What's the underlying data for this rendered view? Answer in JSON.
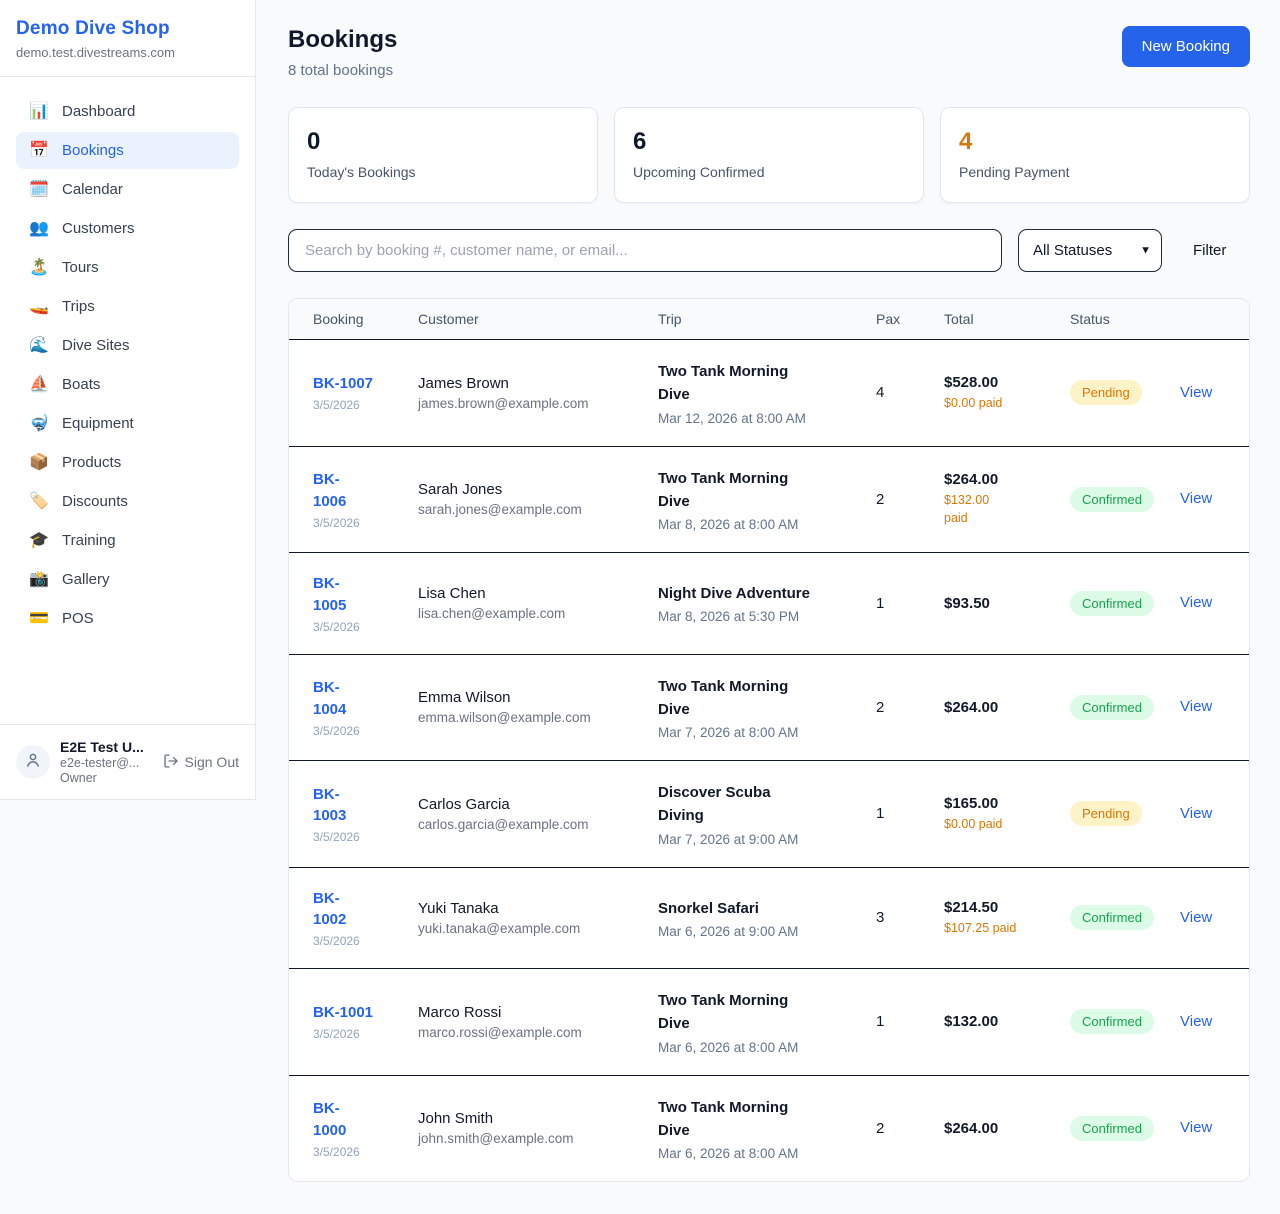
{
  "sidebar": {
    "shop_name": "Demo Dive Shop",
    "domain": "demo.test.divestreams.com",
    "items": [
      {
        "icon": "📊",
        "label": "Dashboard",
        "active": false
      },
      {
        "icon": "📅",
        "label": "Bookings",
        "active": true
      },
      {
        "icon": "🗓️",
        "label": "Calendar",
        "active": false
      },
      {
        "icon": "👥",
        "label": "Customers",
        "active": false
      },
      {
        "icon": "🏝️",
        "label": "Tours",
        "active": false
      },
      {
        "icon": "🚤",
        "label": "Trips",
        "active": false
      },
      {
        "icon": "🌊",
        "label": "Dive Sites",
        "active": false
      },
      {
        "icon": "⛵",
        "label": "Boats",
        "active": false
      },
      {
        "icon": "🤿",
        "label": "Equipment",
        "active": false
      },
      {
        "icon": "📦",
        "label": "Products",
        "active": false
      },
      {
        "icon": "🏷️",
        "label": "Discounts",
        "active": false
      },
      {
        "icon": "🎓",
        "label": "Training",
        "active": false
      },
      {
        "icon": "📸",
        "label": "Gallery",
        "active": false
      },
      {
        "icon": "💳",
        "label": "POS",
        "active": false
      }
    ],
    "user": {
      "name": "E2E Test U...",
      "email": "e2e-tester@...",
      "role": "Owner",
      "sign_out_label": "Sign Out"
    }
  },
  "header": {
    "title": "Bookings",
    "subtitle": "8 total bookings",
    "new_booking_label": "New Booking"
  },
  "stats": [
    {
      "value": "0",
      "label": "Today's Bookings",
      "color": "dark"
    },
    {
      "value": "6",
      "label": "Upcoming Confirmed",
      "color": "dark"
    },
    {
      "value": "4",
      "label": "Pending Payment",
      "color": "orange"
    }
  ],
  "filters": {
    "search_placeholder": "Search by booking #, customer name, or email...",
    "status_selected": "All Statuses",
    "filter_label": "Filter"
  },
  "table": {
    "columns": [
      "Booking",
      "Customer",
      "Trip",
      "Pax",
      "Total",
      "Status",
      ""
    ],
    "view_label": "View",
    "rows": [
      {
        "id": "BK-1007",
        "id_lines": [
          "BK-1007"
        ],
        "date": "3/5/2026",
        "customer": "James Brown",
        "email": "james.brown@example.com",
        "trip_lines": [
          "Two Tank Morning",
          "Dive"
        ],
        "trip_datetime": "Mar 12, 2026 at 8:00 AM",
        "pax": "4",
        "total": "$528.00",
        "paid_lines": [
          "$0.00 paid"
        ],
        "status": "Pending"
      },
      {
        "id": "BK-1006",
        "id_lines": [
          "BK-",
          "1006"
        ],
        "date": "3/5/2026",
        "customer": "Sarah Jones",
        "email": "sarah.jones@example.com",
        "trip_lines": [
          "Two Tank Morning",
          "Dive"
        ],
        "trip_datetime": "Mar 8, 2026 at 8:00 AM",
        "pax": "2",
        "total": "$264.00",
        "paid_lines": [
          "$132.00",
          "paid"
        ],
        "status": "Confirmed"
      },
      {
        "id": "BK-1005",
        "id_lines": [
          "BK-",
          "1005"
        ],
        "date": "3/5/2026",
        "customer": "Lisa Chen",
        "email": "lisa.chen@example.com",
        "trip_lines": [
          "Night Dive Adventure"
        ],
        "trip_datetime": "Mar 8, 2026 at 5:30 PM",
        "pax": "1",
        "total": "$93.50",
        "paid_lines": null,
        "status": "Confirmed"
      },
      {
        "id": "BK-1004",
        "id_lines": [
          "BK-",
          "1004"
        ],
        "date": "3/5/2026",
        "customer": "Emma Wilson",
        "email": "emma.wilson@example.com",
        "trip_lines": [
          "Two Tank Morning",
          "Dive"
        ],
        "trip_datetime": "Mar 7, 2026 at 8:00 AM",
        "pax": "2",
        "total": "$264.00",
        "paid_lines": null,
        "status": "Confirmed"
      },
      {
        "id": "BK-1003",
        "id_lines": [
          "BK-",
          "1003"
        ],
        "date": "3/5/2026",
        "customer": "Carlos Garcia",
        "email": "carlos.garcia@example.com",
        "trip_lines": [
          "Discover Scuba",
          "Diving"
        ],
        "trip_datetime": "Mar 7, 2026 at 9:00 AM",
        "pax": "1",
        "total": "$165.00",
        "paid_lines": [
          "$0.00 paid"
        ],
        "status": "Pending"
      },
      {
        "id": "BK-1002",
        "id_lines": [
          "BK-",
          "1002"
        ],
        "date": "3/5/2026",
        "customer": "Yuki Tanaka",
        "email": "yuki.tanaka@example.com",
        "trip_lines": [
          "Snorkel Safari"
        ],
        "trip_datetime": "Mar 6, 2026 at 9:00 AM",
        "pax": "3",
        "total": "$214.50",
        "paid_lines": [
          "$107.25 paid"
        ],
        "status": "Confirmed"
      },
      {
        "id": "BK-1001",
        "id_lines": [
          "BK-1001"
        ],
        "date": "3/5/2026",
        "customer": "Marco Rossi",
        "email": "marco.rossi@example.com",
        "trip_lines": [
          "Two Tank Morning",
          "Dive"
        ],
        "trip_datetime": "Mar 6, 2026 at 8:00 AM",
        "pax": "1",
        "total": "$132.00",
        "paid_lines": null,
        "status": "Confirmed"
      },
      {
        "id": "BK-1000",
        "id_lines": [
          "BK-",
          "1000"
        ],
        "date": "3/5/2026",
        "customer": "John Smith",
        "email": "john.smith@example.com",
        "trip_lines": [
          "Two Tank Morning",
          "Dive"
        ],
        "trip_datetime": "Mar 6, 2026 at 8:00 AM",
        "pax": "2",
        "total": "$264.00",
        "paid_lines": null,
        "status": "Confirmed"
      }
    ]
  },
  "colors": {
    "accent": "#2563eb",
    "pending_text": "#d97706",
    "pending_bg": "#fef3c7",
    "confirmed_text": "#16a34a",
    "confirmed_bg": "#dcfce7",
    "paid_text": "#d97706"
  }
}
